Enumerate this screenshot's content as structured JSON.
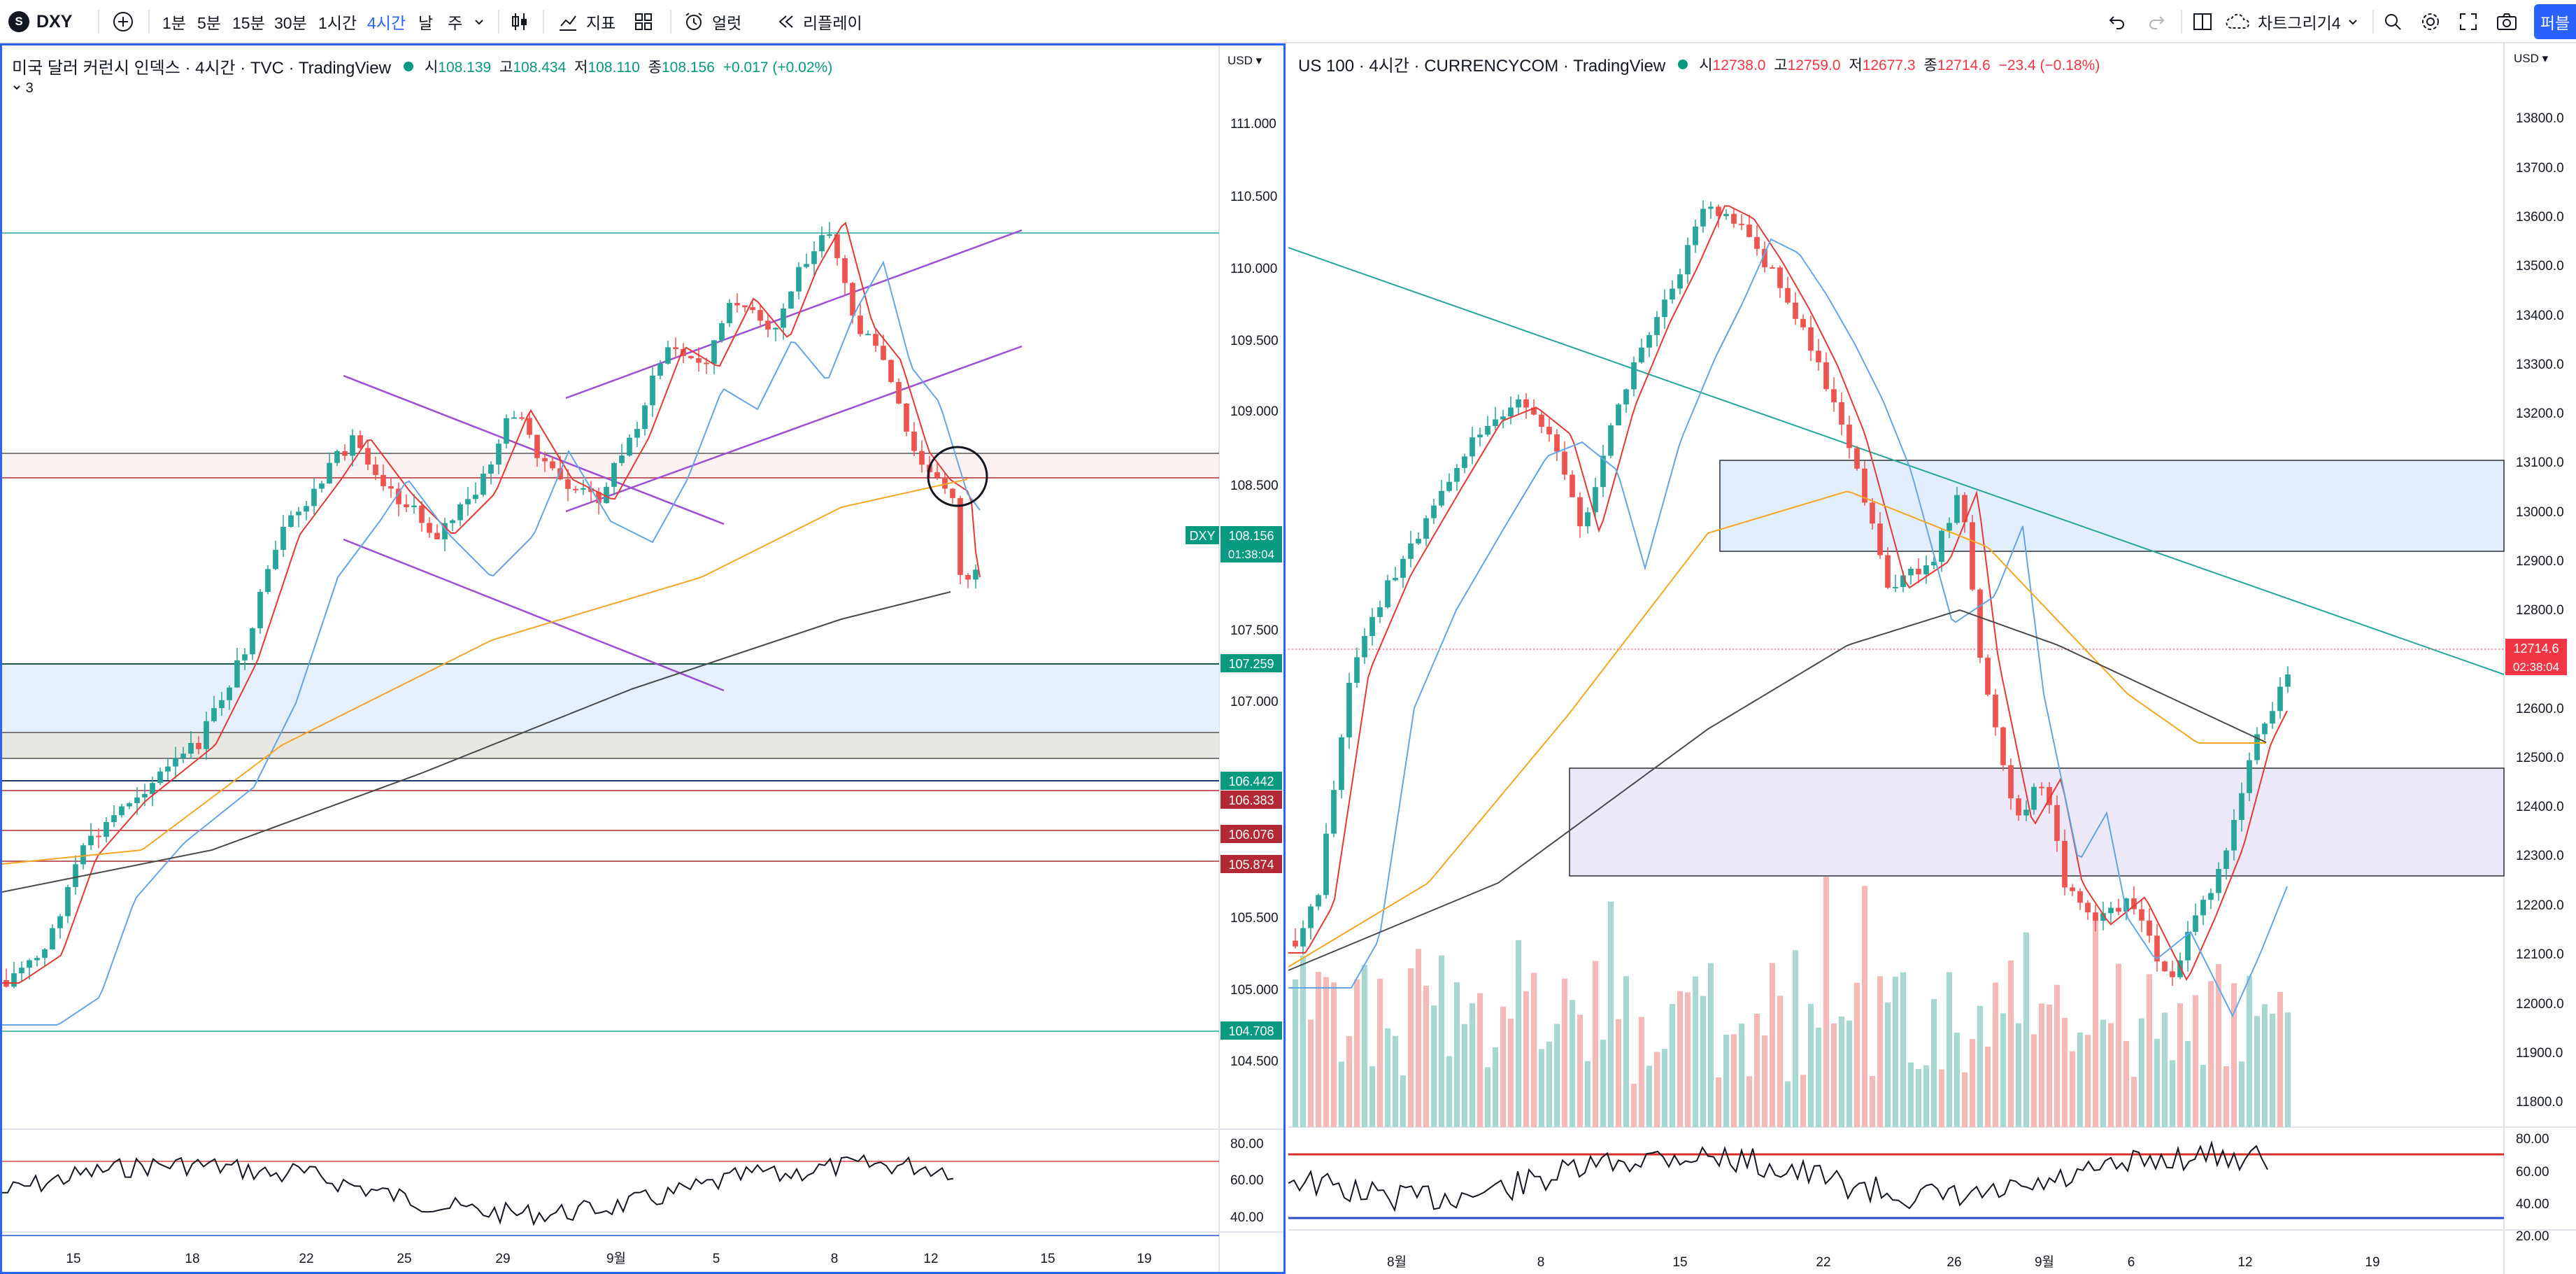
{
  "toolbar": {
    "symbol": "DXY",
    "logo_letter": "S",
    "intervals": [
      "1분",
      "5분",
      "15분",
      "30분",
      "1시간",
      "4시간",
      "날",
      "주"
    ],
    "active_interval": "4시간",
    "indicators_label": "지표",
    "alerts_label": "얼럿",
    "replay_label": "리플레이",
    "layout_label": "차트그리기4",
    "publish_label": "퍼블"
  },
  "left_chart": {
    "title": "미국 달러 커런시 인덱스 · 4시간 · TVC · TradingView",
    "ohlc": {
      "o_label": "시",
      "o": "108.139",
      "h_label": "고",
      "h": "108.434",
      "l_label": "저",
      "l": "108.110",
      "c_label": "종",
      "c": "108.156",
      "change": "+0.017 (+0.02%)"
    },
    "indicator_count": "3",
    "currency": "USD",
    "price_ticks": [
      "111.000",
      "110.500",
      "110.000",
      "109.500",
      "109.000",
      "108.500",
      "107.500",
      "107.000",
      "105.500",
      "105.000",
      "104.500"
    ],
    "date_ticks": [
      "15",
      "18",
      "22",
      "25",
      "29",
      "9월",
      "5",
      "8",
      "12",
      "15",
      "19"
    ],
    "rsi_ticks": [
      "80.00",
      "60.00",
      "40.00"
    ],
    "price_badges": [
      {
        "label": "DXY",
        "value": "108.156",
        "sub": "01:38:04",
        "color": "#089981"
      },
      {
        "value": "107.259",
        "color": "#089981"
      },
      {
        "value": "106.442",
        "color": "#089981"
      },
      {
        "value": "106.383",
        "color": "#b22833"
      },
      {
        "value": "106.076",
        "color": "#b22833"
      },
      {
        "value": "105.874",
        "color": "#b22833"
      },
      {
        "value": "104.708",
        "color": "#089981"
      }
    ]
  },
  "right_chart": {
    "title": "US 100 · 4시간 · CURRENCYCOM · TradingView",
    "ohlc": {
      "o_label": "시",
      "o": "12738.0",
      "h_label": "고",
      "h": "12759.0",
      "l_label": "저",
      "l": "12677.3",
      "c_label": "종",
      "c": "12714.6",
      "change": "−23.4 (−0.18%)"
    },
    "currency": "USD",
    "price_ticks": [
      "13800.0",
      "13700.0",
      "13600.0",
      "13500.0",
      "13400.0",
      "13300.0",
      "13200.0",
      "13100.0",
      "13000.0",
      "12900.0",
      "12800.0",
      "12600.0",
      "12500.0",
      "12400.0",
      "12300.0",
      "12200.0",
      "12100.0",
      "12000.0",
      "11900.0",
      "11800.0"
    ],
    "date_ticks": [
      "8월",
      "8",
      "15",
      "22",
      "26",
      "9월",
      "6",
      "12",
      "19"
    ],
    "rsi_ticks": [
      "80.00",
      "60.00",
      "40.00",
      "20.00"
    ],
    "price_badges": [
      {
        "value": "12714.6",
        "sub": "02:38:04",
        "color": "#f23645"
      }
    ]
  }
}
